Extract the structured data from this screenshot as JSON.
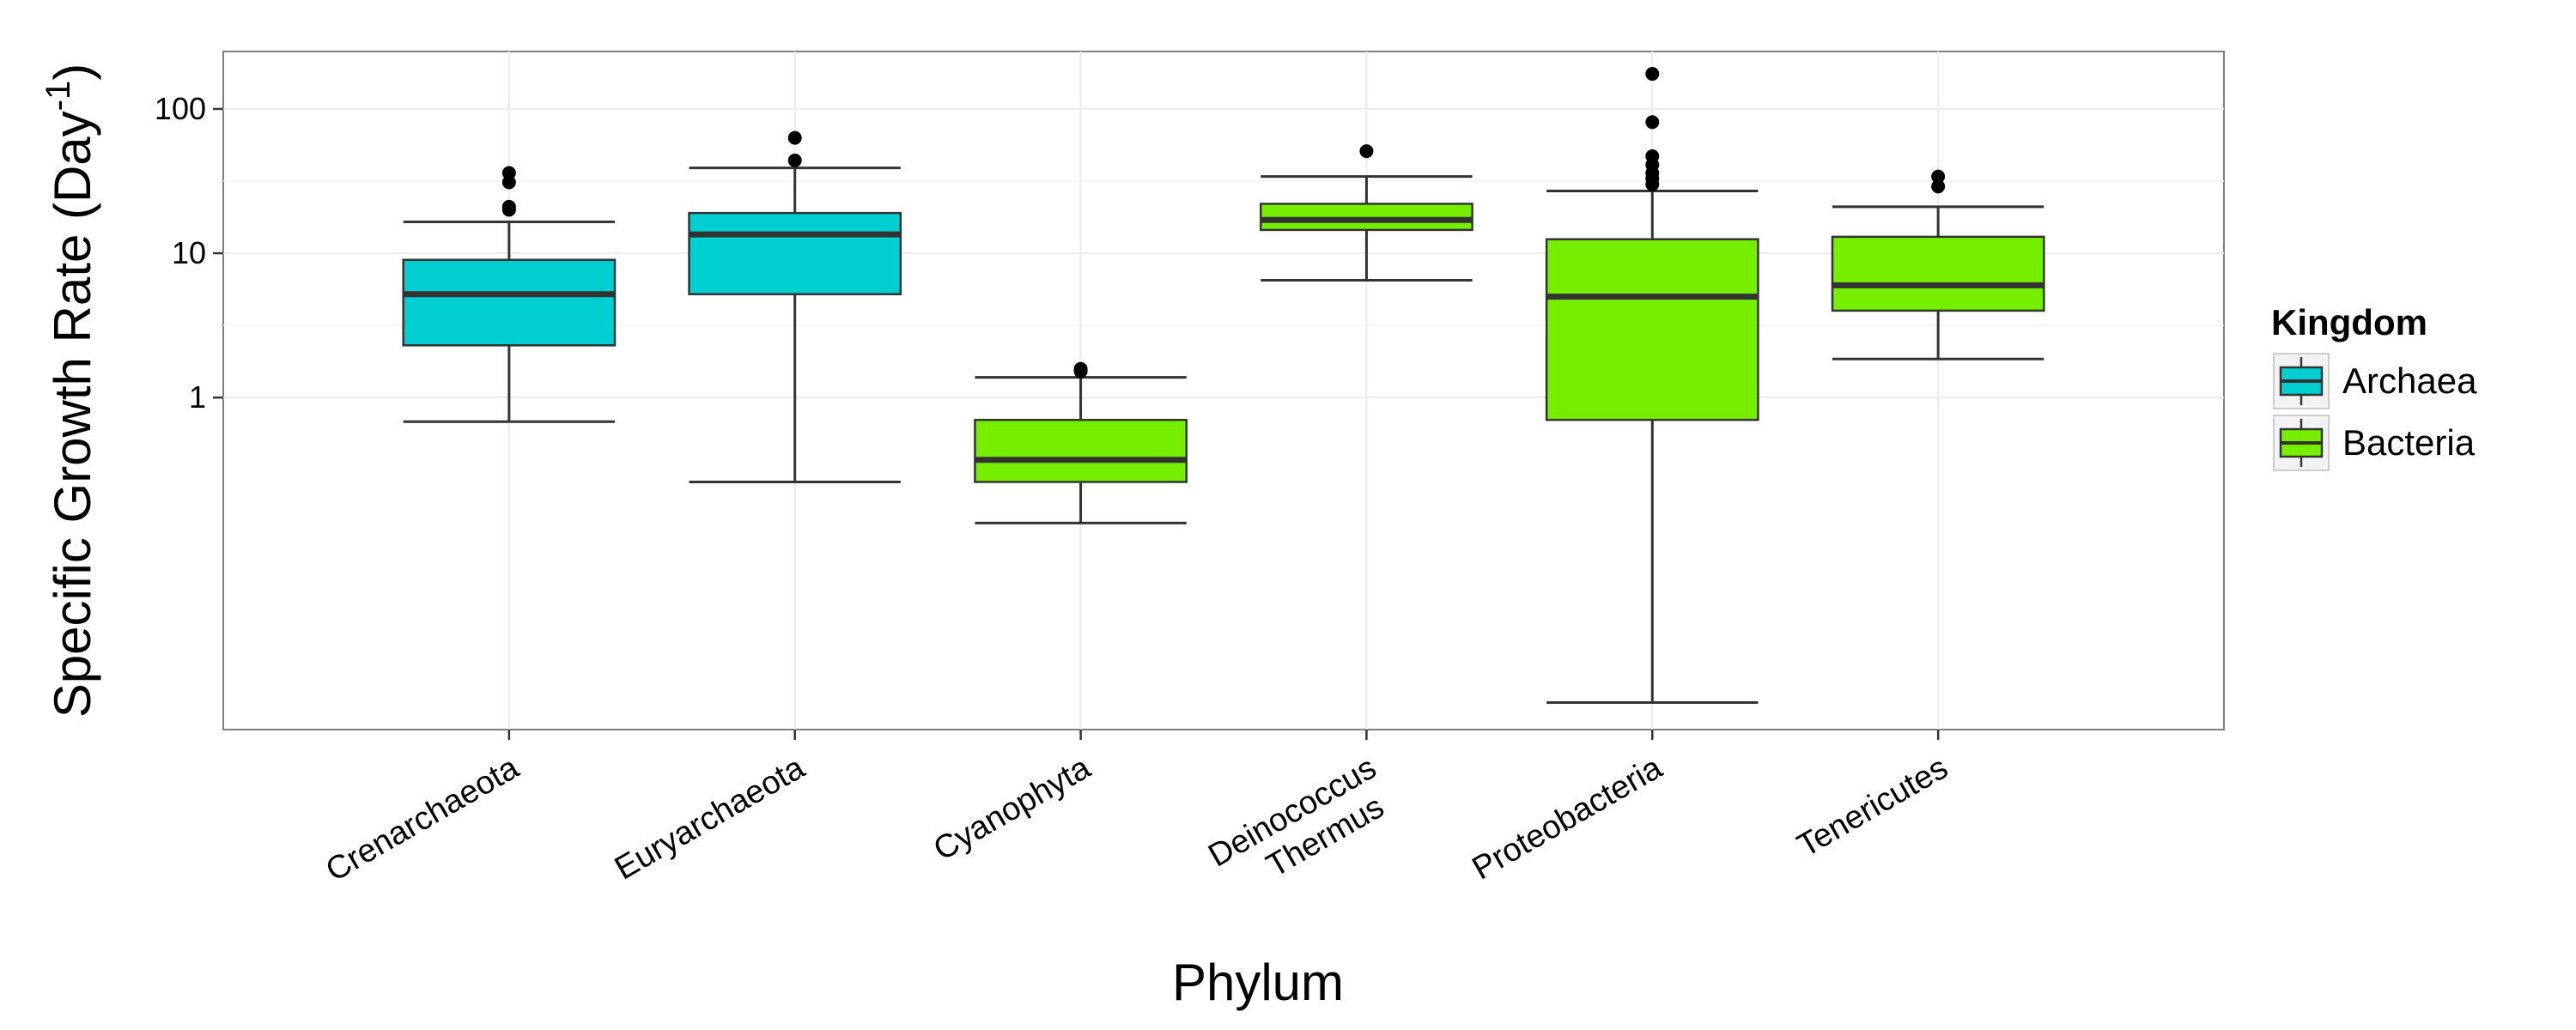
{
  "chart_data": {
    "type": "box",
    "xlabel": "Phylum",
    "ylabel": "Specific Growth Rate (Day",
    "ylabel_superscript": "-1",
    "ylabel_suffix": ")",
    "yscale": "log10",
    "ylim": [
      0.005,
      250
    ],
    "yticks": [
      1,
      10,
      100
    ],
    "ytick_labels": [
      "1",
      "10",
      "100"
    ],
    "grid": true,
    "legend": {
      "title": "Kingdom",
      "position": "right",
      "entries": [
        {
          "label": "Archaea",
          "color": "#00CED1"
        },
        {
          "label": "Bacteria",
          "color": "#76EE00"
        }
      ]
    },
    "categories": [
      {
        "label_lines": [
          "Crenarchaeota"
        ],
        "kingdom": "Archaea",
        "whisker_low": 0.68,
        "q1": 2.3,
        "median": 5.2,
        "q3": 9.0,
        "whisker_high": 16.5,
        "outliers": [
          20,
          21,
          31,
          36
        ]
      },
      {
        "label_lines": [
          "Euryarchaeota"
        ],
        "kingdom": "Archaea",
        "whisker_low": 0.26,
        "q1": 5.2,
        "median": 13.5,
        "q3": 19,
        "whisker_high": 39,
        "outliers": [
          44,
          63
        ]
      },
      {
        "label_lines": [
          "Cyanophyta"
        ],
        "kingdom": "Bacteria",
        "whisker_low": 0.135,
        "q1": 0.26,
        "median": 0.37,
        "q3": 0.7,
        "whisker_high": 1.38,
        "outliers": [
          1.52,
          1.58
        ]
      },
      {
        "label_lines": [
          "Deinococcus",
          "Thermus"
        ],
        "kingdom": "Bacteria",
        "whisker_low": 6.5,
        "q1": 14.5,
        "median": 17,
        "q3": 22,
        "whisker_high": 34,
        "outliers": [
          51
        ]
      },
      {
        "label_lines": [
          "Proteobacteria"
        ],
        "kingdom": "Bacteria",
        "whisker_low": 0.0077,
        "q1": 0.7,
        "median": 5.0,
        "q3": 12.5,
        "whisker_high": 27,
        "outliers": [
          30,
          33,
          36,
          41,
          47,
          81,
          175
        ]
      },
      {
        "label_lines": [
          "Tenericutes"
        ],
        "kingdom": "Bacteria",
        "whisker_low": 1.85,
        "q1": 4.0,
        "median": 6.0,
        "q3": 13,
        "whisker_high": 21,
        "outliers": [
          29,
          34
        ]
      }
    ]
  }
}
